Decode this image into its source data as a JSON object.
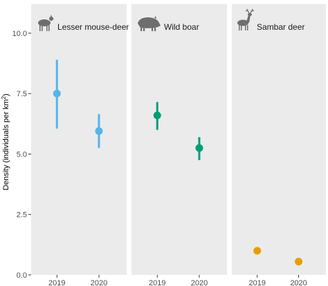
{
  "chart_data": {
    "type": "scatter",
    "subtype": "point-range facets",
    "ylabel_main": "Density (individuals per km",
    "ylabel_sup": "2",
    "ylabel_end": ")",
    "ylim": [
      0,
      11.2
    ],
    "yticks": [
      0,
      2.5,
      5,
      7.5,
      10
    ],
    "ytick_labels": [
      "0.0",
      "2.5",
      "5.0",
      "7.5",
      "10.0"
    ],
    "x": [
      "2019",
      "2020"
    ],
    "grid": false,
    "panels": [
      {
        "title": "Lesser mouse-deer",
        "icon": "mouse-deer-icon",
        "color": "#56B4E9",
        "points": [
          {
            "x": "2019",
            "y": 7.5,
            "low": 6.05,
            "high": 8.9
          },
          {
            "x": "2020",
            "y": 5.95,
            "low": 5.25,
            "high": 6.65
          }
        ]
      },
      {
        "title": "Wild boar",
        "icon": "wild-boar-icon",
        "color": "#009E73",
        "points": [
          {
            "x": "2019",
            "y": 6.6,
            "low": 6.0,
            "high": 7.15
          },
          {
            "x": "2020",
            "y": 5.25,
            "low": 4.75,
            "high": 5.7
          }
        ]
      },
      {
        "title": "Sambar deer",
        "icon": "sambar-deer-icon",
        "color": "#E69F00",
        "points": [
          {
            "x": "2019",
            "y": 1.0,
            "low": 0.85,
            "high": 1.15
          },
          {
            "x": "2020",
            "y": 0.55,
            "low": 0.48,
            "high": 0.62
          }
        ]
      }
    ]
  }
}
